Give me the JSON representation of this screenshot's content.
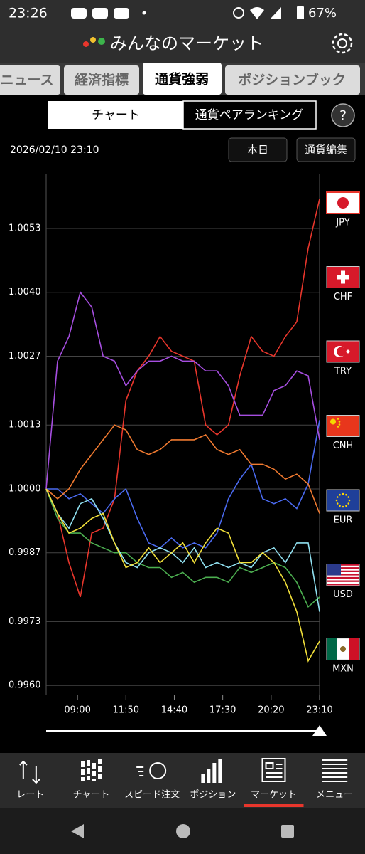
{
  "status_bar": {
    "time": "23:26",
    "battery": "67%"
  },
  "header": {
    "title": "みんなのマーケット"
  },
  "tabs": [
    "ニュース",
    "経済指標",
    "通貨強弱",
    "ポジションブック"
  ],
  "segments": [
    "チャート",
    "通貨ペアランキング"
  ],
  "help": "?",
  "datetime": "2026/02/10 23:10",
  "buttons": [
    "本日",
    "通貨編集"
  ],
  "chart_data": {
    "type": "line",
    "x": [
      430,
      470,
      510,
      550,
      590,
      630,
      670,
      710,
      750,
      790,
      830,
      870,
      910,
      950,
      990,
      1030,
      1070,
      1110,
      1150,
      1190,
      1230,
      1270,
      1310,
      1350,
      1390
    ],
    "xlim": [
      430,
      1390
    ],
    "xticks": [
      {
        "value": 540,
        "label": "09:00"
      },
      {
        "value": 710,
        "label": "11:50"
      },
      {
        "value": 880,
        "label": "14:40"
      },
      {
        "value": 1050,
        "label": "17:30"
      },
      {
        "value": 1220,
        "label": "20:20"
      },
      {
        "value": 1390,
        "label": "23:10"
      }
    ],
    "ylim": [
      0.9958,
      1.0064
    ],
    "yticks": [
      1.0053,
      {
        "value": 1.004,
        "label": "1.0040"
      },
      1.0027,
      1.0013,
      {
        "value": 1,
        "label": "1.0000"
      },
      0.9987,
      0.9973,
      {
        "value": 0.996,
        "label": "0.9960"
      }
    ],
    "grid": true,
    "series": [
      {
        "name": "JPY",
        "color": "#e8362c",
        "values": [
          1.0,
          0.9995,
          0.9985,
          0.9978,
          0.9991,
          0.9992,
          0.9998,
          1.0018,
          1.0024,
          1.0027,
          1.0031,
          1.0028,
          1.0027,
          1.0026,
          1.0013,
          1.0011,
          1.0013,
          1.0023,
          1.0031,
          1.0028,
          1.0027,
          1.0031,
          1.0034,
          1.0049,
          1.0059
        ]
      },
      {
        "name": "CHF",
        "color": "#4a6af0",
        "values": [
          1.0,
          1.0,
          0.9998,
          0.9999,
          0.9997,
          0.9995,
          0.9998,
          1.0,
          0.9994,
          0.9989,
          0.9988,
          0.999,
          0.9988,
          0.9989,
          0.9988,
          0.9991,
          0.9998,
          1.0002,
          1.0005,
          0.9998,
          0.9997,
          0.9998,
          0.9996,
          1.0001,
          1.0014
        ]
      },
      {
        "name": "TRY",
        "color": "#a64ee0",
        "values": [
          1.0,
          1.0026,
          1.0031,
          1.004,
          1.0037,
          1.0027,
          1.0026,
          1.0021,
          1.0024,
          1.0026,
          1.0026,
          1.0027,
          1.0026,
          1.0026,
          1.0024,
          1.0024,
          1.0021,
          1.0015,
          1.0015,
          1.0015,
          1.002,
          1.0021,
          1.0024,
          1.0023,
          1.001
        ]
      },
      {
        "name": "CNH",
        "color": "#f07a30",
        "values": [
          1.0,
          0.9998,
          1.0,
          1.0004,
          1.0007,
          1.001,
          1.0013,
          1.0012,
          1.0008,
          1.0007,
          1.0008,
          1.001,
          1.001,
          1.001,
          1.0011,
          1.0008,
          1.0007,
          1.0008,
          1.0005,
          1.0005,
          1.0004,
          1.0002,
          1.0003,
          1.0001,
          0.9995
        ]
      },
      {
        "name": "EUR",
        "color": "#4caf50",
        "values": [
          1.0,
          0.9994,
          0.9991,
          0.9991,
          0.9989,
          0.9988,
          0.9987,
          0.9987,
          0.9985,
          0.9984,
          0.9984,
          0.9982,
          0.9983,
          0.9981,
          0.9982,
          0.9982,
          0.9981,
          0.9984,
          0.9983,
          0.9984,
          0.9985,
          0.9984,
          0.9981,
          0.9976,
          0.9978
        ]
      },
      {
        "name": "USD",
        "color": "#90e0f0",
        "values": [
          1.0,
          0.9995,
          0.9992,
          0.9997,
          0.9998,
          0.9994,
          0.9989,
          0.9985,
          0.9984,
          0.9987,
          0.9988,
          0.9987,
          0.9985,
          0.9988,
          0.9984,
          0.9985,
          0.9984,
          0.9985,
          0.9984,
          0.9987,
          0.9988,
          0.9985,
          0.9989,
          0.9989,
          0.9975
        ]
      },
      {
        "name": "MXN",
        "color": "#f2e03a",
        "values": [
          1.0,
          0.9995,
          0.9991,
          0.9992,
          0.9994,
          0.9995,
          0.9989,
          0.9984,
          0.9985,
          0.9988,
          0.9985,
          0.9987,
          0.9989,
          0.9985,
          0.9989,
          0.9992,
          0.9991,
          0.9985,
          0.9985,
          0.9987,
          0.9985,
          0.9981,
          0.9975,
          0.9965,
          0.9969
        ]
      }
    ]
  },
  "nav": [
    "レート",
    "チャート",
    "スピード注文",
    "ポジション",
    "マーケット",
    "メニュー"
  ]
}
